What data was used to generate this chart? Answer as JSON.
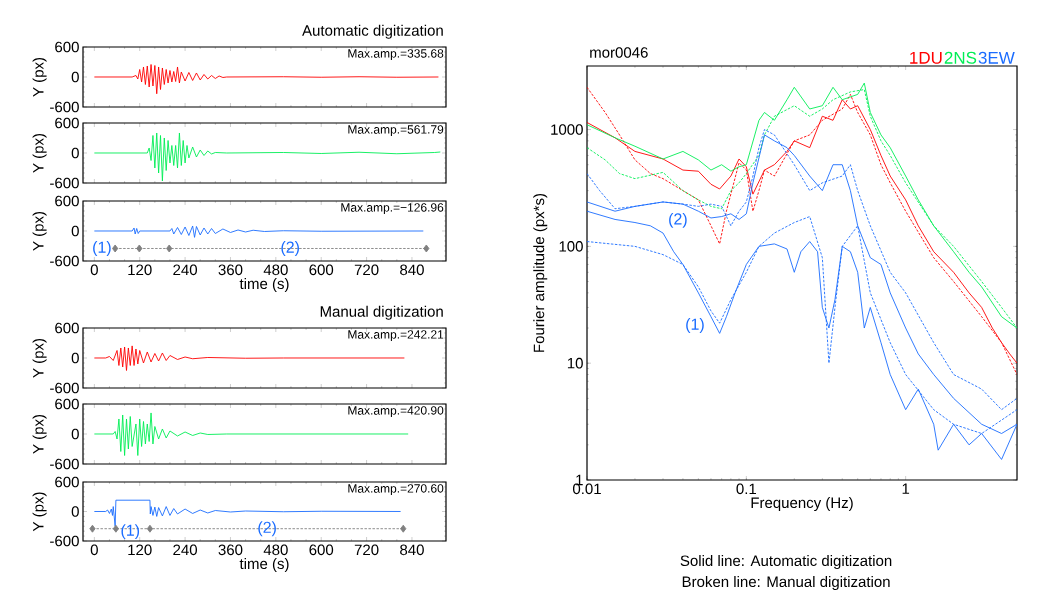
{
  "chart_data": [
    {
      "type": "line",
      "title": "Automatic digitization",
      "ylabel": "Y (px)",
      "xlim": [
        -30,
        930
      ],
      "ylim": [
        -600,
        600
      ],
      "xticks": [
        0,
        120,
        240,
        360,
        480,
        600,
        720,
        840
      ],
      "yticks": [
        -600,
        0,
        600
      ],
      "tick_labels": "y",
      "annotations": [
        "Max.amp.=335.68"
      ],
      "series": [
        {
          "color": "#ff0000",
          "x": [
            0,
            100,
            110,
            115,
            120,
            125,
            130,
            135,
            140,
            145,
            150,
            155,
            160,
            165,
            170,
            175,
            180,
            185,
            190,
            195,
            200,
            205,
            210,
            215,
            220,
            225,
            230,
            240,
            250,
            260,
            270,
            280,
            290,
            300,
            310,
            320,
            330,
            340,
            350,
            500,
            600,
            700,
            800,
            910
          ],
          "values": [
            0,
            0,
            30,
            -40,
            150,
            -100,
            200,
            -150,
            220,
            -200,
            250,
            -180,
            230,
            -335,
            200,
            -250,
            180,
            -150,
            150,
            -120,
            130,
            -100,
            110,
            -90,
            200,
            -120,
            100,
            -80,
            90,
            -70,
            80,
            -60,
            50,
            -40,
            30,
            -30,
            20,
            -10,
            0,
            5,
            -5,
            5,
            -5,
            0
          ]
        }
      ]
    },
    {
      "type": "line",
      "ylabel": "Y (px)",
      "xlim": [
        -30,
        930
      ],
      "ylim": [
        -600,
        600
      ],
      "xticks": [
        0,
        120,
        240,
        360,
        480,
        600,
        720,
        840
      ],
      "yticks": [
        -600,
        0,
        600
      ],
      "tick_labels": "y",
      "annotations": [
        "Max.amp.=561.79"
      ],
      "series": [
        {
          "color": "#00ee55",
          "x": [
            0,
            140,
            145,
            150,
            155,
            160,
            165,
            170,
            175,
            180,
            185,
            190,
            195,
            200,
            205,
            210,
            215,
            220,
            225,
            230,
            235,
            240,
            245,
            250,
            260,
            270,
            280,
            290,
            300,
            310,
            320,
            350,
            500,
            600,
            700,
            800,
            900,
            915
          ],
          "values": [
            0,
            0,
            100,
            -150,
            350,
            -300,
            400,
            -400,
            350,
            -560,
            300,
            -350,
            250,
            -200,
            150,
            -250,
            150,
            -300,
            400,
            -250,
            250,
            -200,
            150,
            -100,
            120,
            -80,
            60,
            -50,
            40,
            -20,
            10,
            0,
            10,
            -10,
            15,
            -15,
            10,
            20
          ]
        }
      ]
    },
    {
      "type": "line",
      "ylabel": "Y (px)",
      "xlabel": "time (s)",
      "xlim": [
        -30,
        930
      ],
      "ylim": [
        -600,
        600
      ],
      "xticks": [
        0,
        120,
        240,
        360,
        480,
        600,
        720,
        840
      ],
      "yticks": [
        -600,
        0,
        600
      ],
      "annotations": [
        "Max.amp.=−126.96",
        "(1)",
        "(2)"
      ],
      "series": [
        {
          "color": "#1a6cff",
          "x": [
            0,
            100,
            105,
            108,
            112,
            116,
            120,
            200,
            205,
            210,
            220,
            230,
            240,
            250,
            260,
            265,
            270,
            280,
            290,
            300,
            310,
            320,
            340,
            360,
            380,
            400,
            420,
            450,
            500,
            600,
            870
          ],
          "values": [
            0,
            0,
            60,
            -60,
            50,
            -50,
            0,
            0,
            50,
            -60,
            70,
            -70,
            80,
            -90,
            100,
            -127,
            90,
            -80,
            60,
            -60,
            50,
            -50,
            40,
            -30,
            20,
            -20,
            15,
            -10,
            5,
            -5,
            0
          ]
        },
        {
          "color": "#808080",
          "marker": "diamond",
          "line_style": "dashed",
          "x": [
            55,
            119,
            198,
            878
          ],
          "values": [
            -350,
            -350,
            -350,
            -350
          ]
        }
      ]
    },
    {
      "type": "line",
      "title": "Manual digitization",
      "ylabel": "Y (px)",
      "xlim": [
        -30,
        930
      ],
      "ylim": [
        -600,
        600
      ],
      "xticks": [
        0,
        120,
        240,
        360,
        480,
        600,
        720,
        840
      ],
      "yticks": [
        -600,
        0,
        600
      ],
      "tick_labels": "y",
      "annotations": [
        "Max.amp.=242.21"
      ],
      "series": [
        {
          "color": "#ff0000",
          "x": [
            0,
            30,
            40,
            50,
            60,
            65,
            70,
            75,
            80,
            85,
            90,
            95,
            100,
            105,
            110,
            115,
            120,
            130,
            140,
            150,
            160,
            170,
            180,
            190,
            200,
            220,
            240,
            260,
            300,
            400,
            500,
            820
          ],
          "values": [
            0,
            0,
            30,
            -50,
            150,
            -150,
            200,
            -180,
            220,
            -250,
            200,
            -150,
            242,
            -150,
            180,
            -120,
            150,
            -100,
            120,
            -80,
            90,
            -60,
            100,
            -50,
            50,
            -30,
            20,
            -15,
            10,
            -5,
            0,
            0
          ]
        }
      ]
    },
    {
      "type": "line",
      "ylabel": "Y (px)",
      "xlim": [
        -30,
        930
      ],
      "ylim": [
        -600,
        600
      ],
      "xticks": [
        0,
        120,
        240,
        360,
        480,
        600,
        720,
        840
      ],
      "yticks": [
        -600,
        0,
        600
      ],
      "tick_labels": "y",
      "annotations": [
        "Max.amp.=420.90"
      ],
      "series": [
        {
          "color": "#00ee55",
          "x": [
            0,
            50,
            55,
            60,
            65,
            70,
            75,
            80,
            85,
            90,
            95,
            100,
            110,
            115,
            120,
            125,
            130,
            135,
            140,
            145,
            150,
            155,
            160,
            170,
            180,
            190,
            200,
            220,
            240,
            260,
            280,
            300,
            350,
            830
          ],
          "values": [
            0,
            0,
            50,
            -100,
            300,
            -350,
            380,
            -430,
            300,
            -300,
            350,
            -250,
            200,
            -430,
            300,
            -250,
            250,
            -200,
            200,
            -150,
            421,
            -200,
            150,
            -100,
            100,
            -80,
            60,
            -40,
            40,
            -30,
            20,
            -10,
            0,
            0
          ]
        }
      ]
    },
    {
      "type": "line",
      "ylabel": "Y (px)",
      "xlabel": "time (s)",
      "xlim": [
        -30,
        930
      ],
      "ylim": [
        -600,
        600
      ],
      "xticks": [
        0,
        120,
        240,
        360,
        480,
        600,
        720,
        840
      ],
      "yticks": [
        -600,
        0,
        600
      ],
      "annotations": [
        "Max.amp.=270.60",
        "(1)",
        "(2)"
      ],
      "series": [
        {
          "color": "#1a6cff",
          "x": [
            0,
            30,
            35,
            40,
            45,
            48,
            50,
            55,
            57,
            147,
            148,
            150,
            155,
            160,
            165,
            170,
            180,
            190,
            200,
            210,
            220,
            240,
            260,
            280,
            300,
            320,
            360,
            400,
            500,
            600,
            810
          ],
          "values": [
            0,
            0,
            30,
            -40,
            50,
            -80,
            100,
            -300,
            230,
            230,
            -50,
            100,
            -80,
            90,
            -100,
            80,
            -90,
            100,
            -80,
            60,
            -50,
            50,
            -40,
            30,
            -30,
            20,
            -10,
            10,
            -5,
            5,
            0
          ]
        },
        {
          "color": "#808080",
          "marker": "diamond",
          "line_style": "dashed",
          "x": [
            -5,
            57,
            147,
            817
          ],
          "values": [
            -350,
            -350,
            -350,
            -350
          ]
        }
      ]
    },
    {
      "type": "line",
      "title": "mor0046",
      "xlabel": "Frequency (Hz)",
      "ylabel": "Fourier amplitude (px*s)",
      "log": "xy",
      "xlim": [
        0.01,
        5
      ],
      "ylim": [
        1,
        3500
      ],
      "xticks": [
        0.01,
        0.1,
        1
      ],
      "yticks": [
        1,
        10,
        100,
        1000
      ],
      "legend": "top right",
      "line_style": "solid",
      "annotations": [
        "(1)",
        "(2)",
        "Solid line: Automatic digitization",
        "Broken line: Manual digitization"
      ],
      "series": [
        {
          "name": "1DU",
          "color": "#ff0000",
          "x": [
            0.01,
            0.015,
            0.02,
            0.03,
            0.04,
            0.05,
            0.06,
            0.068,
            0.08,
            0.09,
            0.1,
            0.11,
            0.13,
            0.15,
            0.18,
            0.2,
            0.25,
            0.3,
            0.35,
            0.4,
            0.45,
            0.5,
            0.6,
            0.7,
            0.8,
            1,
            1.2,
            1.5,
            2,
            2.5,
            3,
            3.5,
            4,
            4.5,
            5
          ],
          "values": [
            1150,
            850,
            650,
            560,
            450,
            440,
            340,
            310,
            400,
            560,
            480,
            280,
            450,
            500,
            650,
            800,
            700,
            1300,
            1200,
            1800,
            1500,
            1600,
            1000,
            600,
            400,
            250,
            150,
            90,
            60,
            40,
            30,
            20,
            15,
            12,
            10
          ]
        },
        {
          "color": "#ff0000",
          "line_style": "dashed",
          "x": [
            0.01,
            0.013,
            0.016,
            0.02,
            0.025,
            0.03,
            0.04,
            0.05,
            0.06,
            0.068,
            0.075,
            0.09,
            0.1,
            0.11,
            0.12,
            0.13,
            0.15,
            0.2,
            0.25,
            0.3,
            0.4,
            0.45,
            0.5,
            0.6,
            0.7,
            0.8,
            1,
            1.5,
            2,
            3,
            4,
            5
          ],
          "values": [
            2300,
            1400,
            900,
            550,
            420,
            380,
            300,
            250,
            150,
            105,
            200,
            520,
            450,
            200,
            300,
            450,
            400,
            800,
            900,
            1200,
            1500,
            2000,
            1400,
            900,
            500,
            350,
            200,
            80,
            50,
            25,
            15,
            8
          ]
        },
        {
          "name": "2NS",
          "color": "#00ee55",
          "x": [
            0.01,
            0.015,
            0.02,
            0.03,
            0.04,
            0.05,
            0.06,
            0.07,
            0.08,
            0.09,
            0.1,
            0.12,
            0.13,
            0.15,
            0.18,
            0.2,
            0.25,
            0.3,
            0.35,
            0.4,
            0.5,
            0.55,
            0.6,
            0.7,
            0.8,
            1,
            1.2,
            1.5,
            2,
            2.5,
            3,
            4,
            5
          ],
          "values": [
            1100,
            850,
            720,
            560,
            650,
            550,
            450,
            500,
            440,
            480,
            500,
            1200,
            1400,
            1200,
            1800,
            2300,
            1500,
            1600,
            2300,
            1800,
            2000,
            2500,
            1400,
            900,
            700,
            400,
            250,
            150,
            90,
            60,
            45,
            25,
            20
          ]
        },
        {
          "color": "#00ee55",
          "line_style": "dashed",
          "x": [
            0.01,
            0.013,
            0.016,
            0.02,
            0.03,
            0.04,
            0.05,
            0.06,
            0.07,
            0.08,
            0.09,
            0.1,
            0.12,
            0.13,
            0.15,
            0.2,
            0.25,
            0.3,
            0.35,
            0.45,
            0.55,
            0.6,
            0.7,
            0.8,
            1,
            1.5,
            2,
            3,
            4,
            5
          ],
          "values": [
            700,
            550,
            420,
            380,
            430,
            300,
            250,
            220,
            210,
            300,
            350,
            420,
            600,
            900,
            1300,
            1600,
            1300,
            1500,
            1800,
            2100,
            2200,
            1300,
            800,
            600,
            350,
            150,
            100,
            50,
            30,
            20
          ]
        },
        {
          "name": "3EW",
          "color": "#1a6cff",
          "x": [
            0.01,
            0.015,
            0.02,
            0.03,
            0.04,
            0.05,
            0.06,
            0.07,
            0.08,
            0.09,
            0.1,
            0.11,
            0.13,
            0.15,
            0.18,
            0.2,
            0.25,
            0.3,
            0.35,
            0.4,
            0.45,
            0.5,
            0.6,
            0.7,
            0.8,
            1,
            1.2,
            1.5,
            2,
            3,
            4,
            5
          ],
          "values": [
            240,
            200,
            220,
            240,
            230,
            200,
            175,
            180,
            190,
            170,
            190,
            350,
            900,
            800,
            700,
            600,
            400,
            300,
            500,
            500,
            300,
            150,
            80,
            70,
            40,
            20,
            12,
            8,
            5,
            3,
            2.5,
            3
          ]
        },
        {
          "color": "#1a6cff",
          "line_style": "dashed",
          "x": [
            0.01,
            0.012,
            0.015,
            0.02,
            0.03,
            0.04,
            0.05,
            0.06,
            0.07,
            0.08,
            0.09,
            0.1,
            0.11,
            0.12,
            0.13,
            0.15,
            0.2,
            0.25,
            0.3,
            0.4,
            0.45,
            0.5,
            0.6,
            0.8,
            1,
            1.5,
            2,
            3,
            4,
            5
          ],
          "values": [
            420,
            300,
            210,
            220,
            240,
            230,
            220,
            230,
            220,
            150,
            200,
            240,
            400,
            700,
            1000,
            900,
            500,
            300,
            350,
            400,
            500,
            300,
            150,
            60,
            40,
            15,
            8,
            6,
            4,
            5
          ]
        },
        {
          "color": "#1a6cff",
          "x": [
            0.01,
            0.015,
            0.02,
            0.025,
            0.03,
            0.035,
            0.04,
            0.05,
            0.06,
            0.068,
            0.075,
            0.085,
            0.1,
            0.12,
            0.15,
            0.18,
            0.2,
            0.22,
            0.25,
            0.28,
            0.3,
            0.33,
            0.36,
            0.4,
            0.45,
            0.5,
            0.55,
            0.6,
            0.7,
            0.8,
            1,
            1.2,
            1.5,
            1.6,
            2,
            2.5,
            3,
            4,
            5
          ],
          "values": [
            200,
            170,
            160,
            150,
            130,
            90,
            70,
            40,
            25,
            18,
            25,
            40,
            70,
            100,
            105,
            95,
            60,
            90,
            110,
            90,
            30,
            20,
            35,
            100,
            90,
            60,
            20,
            30,
            15,
            8,
            4,
            6,
            3,
            1.8,
            3,
            2,
            2.5,
            1.5,
            3
          ]
        },
        {
          "color": "#1a6cff",
          "line_style": "dashed",
          "x": [
            0.01,
            0.02,
            0.03,
            0.04,
            0.05,
            0.06,
            0.068,
            0.08,
            0.1,
            0.12,
            0.15,
            0.2,
            0.25,
            0.3,
            0.33,
            0.36,
            0.4,
            0.5,
            0.6,
            0.8,
            1,
            1.5,
            2,
            3,
            5
          ],
          "values": [
            110,
            100,
            85,
            70,
            45,
            28,
            22,
            35,
            60,
            100,
            130,
            160,
            180,
            80,
            10,
            30,
            100,
            150,
            40,
            15,
            8,
            4,
            3,
            2.5,
            4
          ]
        }
      ]
    }
  ]
}
